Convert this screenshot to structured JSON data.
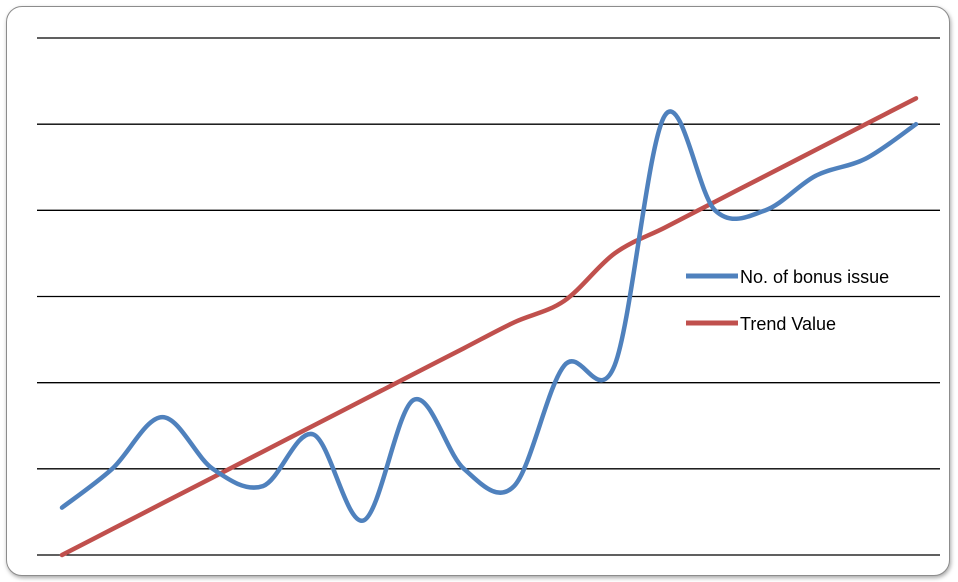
{
  "chart_data": {
    "type": "line",
    "title": "",
    "xlabel": "",
    "ylabel": "",
    "x": [
      1,
      2,
      3,
      4,
      5,
      6,
      7,
      8,
      9,
      10,
      11,
      12,
      13,
      14,
      15,
      16,
      17,
      18
    ],
    "ylim": [
      0,
      6
    ],
    "grid": true,
    "legend_position": "right",
    "series": [
      {
        "name": "No. of bonus issue",
        "color": "#4f81bd",
        "values": [
          0.55,
          1.0,
          1.6,
          1.0,
          0.8,
          1.4,
          0.4,
          1.8,
          1.0,
          0.8,
          2.2,
          2.2,
          5.1,
          4.0,
          4.0,
          4.4,
          4.6,
          5.0
        ]
      },
      {
        "name": "Trend Value",
        "color": "#c0504d",
        "values": [
          0.0,
          0.3,
          0.6,
          0.9,
          1.2,
          1.5,
          1.8,
          2.1,
          2.4,
          2.7,
          2.95,
          3.5,
          3.8,
          4.1,
          4.4,
          4.7,
          5.0,
          5.3
        ]
      }
    ]
  }
}
